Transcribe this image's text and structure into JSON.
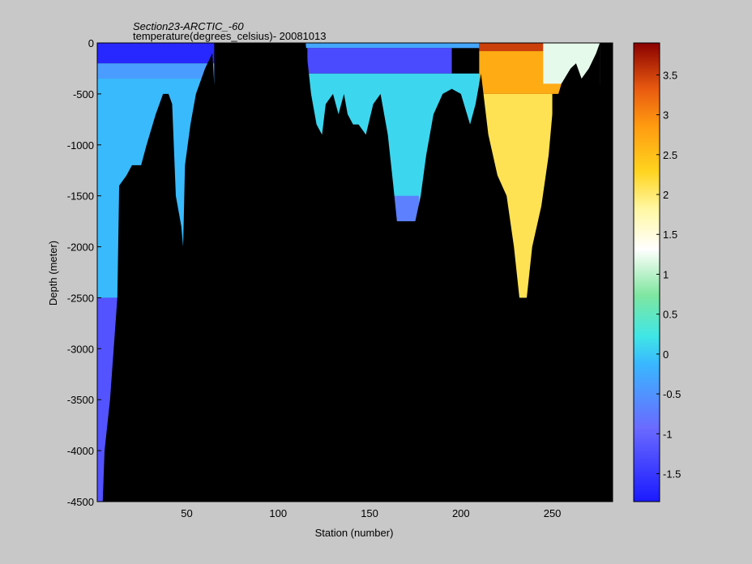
{
  "chart_data": {
    "type": "heatmap",
    "title": "Section23-ARCTIC_-60",
    "subtitle": "temperature(degrees_celsius)- 20081013",
    "xlabel": "Station (number)",
    "ylabel": "Depth (meter)",
    "xlim": [
      1,
      283
    ],
    "ylim": [
      -4500,
      0
    ],
    "xticks": [
      50,
      100,
      150,
      200,
      250
    ],
    "yticks": [
      0,
      -500,
      -1000,
      -1500,
      -2000,
      -2500,
      -3000,
      -3500,
      -4000,
      -4500
    ],
    "colorbar": {
      "min": -1.85,
      "max": 3.9,
      "ticks": [
        -1.5,
        -1,
        -0.5,
        0,
        0.5,
        1,
        1.5,
        2,
        2.5,
        3,
        3.5
      ]
    },
    "background": "#000000",
    "bottom_depth_profile": [
      [
        1,
        -4500
      ],
      [
        4,
        -4500
      ],
      [
        5,
        -4000
      ],
      [
        8,
        -3500
      ],
      [
        10,
        -3000
      ],
      [
        12,
        -2500
      ],
      [
        13,
        -1400
      ],
      [
        17,
        -1300
      ],
      [
        20,
        -1200
      ],
      [
        25,
        -1200
      ],
      [
        28,
        -1000
      ],
      [
        33,
        -700
      ],
      [
        37,
        -500
      ],
      [
        40,
        -500
      ],
      [
        42,
        -600
      ],
      [
        44,
        -1500
      ],
      [
        47,
        -1800
      ],
      [
        48,
        -2000
      ],
      [
        49,
        -1200
      ],
      [
        52,
        -800
      ],
      [
        55,
        -500
      ],
      [
        60,
        -250
      ],
      [
        64,
        -100
      ],
      [
        65,
        -400
      ],
      [
        66,
        -500
      ],
      [
        67,
        0
      ],
      [
        115,
        0
      ],
      [
        118,
        -500
      ],
      [
        121,
        -800
      ],
      [
        124,
        -900
      ],
      [
        126,
        -600
      ],
      [
        130,
        -500
      ],
      [
        133,
        -700
      ],
      [
        136,
        -500
      ],
      [
        138,
        -700
      ],
      [
        141,
        -800
      ],
      [
        144,
        -800
      ],
      [
        148,
        -900
      ],
      [
        152,
        -600
      ],
      [
        156,
        -500
      ],
      [
        160,
        -900
      ],
      [
        163,
        -1400
      ],
      [
        165,
        -1750
      ],
      [
        175,
        -1750
      ],
      [
        178,
        -1500
      ],
      [
        181,
        -1100
      ],
      [
        185,
        -700
      ],
      [
        190,
        -500
      ],
      [
        195,
        -450
      ],
      [
        200,
        -500
      ],
      [
        205,
        -800
      ],
      [
        208,
        -600
      ],
      [
        211,
        -300
      ],
      [
        215,
        -900
      ],
      [
        220,
        -1300
      ],
      [
        225,
        -1500
      ],
      [
        229,
        -2000
      ],
      [
        232,
        -2500
      ],
      [
        236,
        -2500
      ],
      [
        239,
        -2000
      ],
      [
        244,
        -1600
      ],
      [
        248,
        -1100
      ],
      [
        250,
        -700
      ],
      [
        255,
        -400
      ],
      [
        260,
        -250
      ],
      [
        263,
        -200
      ],
      [
        266,
        -350
      ],
      [
        270,
        -250
      ],
      [
        274,
        -100
      ],
      [
        276,
        0
      ]
    ],
    "temperature_regions": [
      {
        "stations": [
          1,
          65
        ],
        "depth_range": [
          0,
          -200
        ],
        "value": -1.7
      },
      {
        "stations": [
          1,
          65
        ],
        "depth_range": [
          -200,
          -350
        ],
        "value": -0.4
      },
      {
        "stations": [
          1,
          65
        ],
        "depth_range": [
          -350,
          -2500
        ],
        "value": -0.1
      },
      {
        "stations": [
          1,
          12
        ],
        "depth_range": [
          -2500,
          -4500
        ],
        "value": -1.2
      },
      {
        "stations": [
          115,
          210
        ],
        "depth_range": [
          0,
          -50
        ],
        "value": -0.3
      },
      {
        "stations": [
          116,
          195
        ],
        "depth_range": [
          -50,
          -300
        ],
        "value": -1.3
      },
      {
        "stations": [
          115,
          210
        ],
        "depth_range": [
          -300,
          -1750
        ],
        "value": 0.1
      },
      {
        "stations": [
          163,
          177
        ],
        "depth_range": [
          -1500,
          -1750
        ],
        "value": -0.7
      },
      {
        "stations": [
          210,
          276
        ],
        "depth_range": [
          0,
          -80
        ],
        "value": 3.5
      },
      {
        "stations": [
          210,
          260
        ],
        "depth_range": [
          -80,
          -500
        ],
        "value": 2.7
      },
      {
        "stations": [
          212,
          250
        ],
        "depth_range": [
          -500,
          -2500
        ],
        "value": 2.1
      },
      {
        "stations": [
          245,
          276
        ],
        "depth_range": [
          0,
          -400
        ],
        "value": 1.2
      }
    ]
  }
}
